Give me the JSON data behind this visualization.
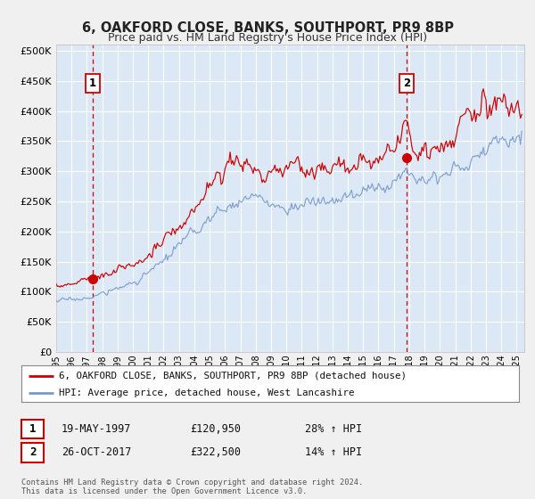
{
  "title": "6, OAKFORD CLOSE, BANKS, SOUTHPORT, PR9 8BP",
  "subtitle": "Price paid vs. HM Land Registry's House Price Index (HPI)",
  "xlim_start": 1995.0,
  "xlim_end": 2025.5,
  "ylim_bottom": 0,
  "ylim_top": 510000,
  "yticks": [
    0,
    50000,
    100000,
    150000,
    200000,
    250000,
    300000,
    350000,
    400000,
    450000,
    500000
  ],
  "ytick_labels": [
    "£0",
    "£50K",
    "£100K",
    "£150K",
    "£200K",
    "£250K",
    "£300K",
    "£350K",
    "£400K",
    "£450K",
    "£500K"
  ],
  "sale1_date": 1997.38,
  "sale1_price": 120950,
  "sale1_label": "1",
  "sale2_date": 2017.82,
  "sale2_price": 322500,
  "sale2_label": "2",
  "legend_line1": "6, OAKFORD CLOSE, BANKS, SOUTHPORT, PR9 8BP (detached house)",
  "legend_line2": "HPI: Average price, detached house, West Lancashire",
  "table_row1": [
    "1",
    "19-MAY-1997",
    "£120,950",
    "28% ↑ HPI"
  ],
  "table_row2": [
    "2",
    "26-OCT-2017",
    "£322,500",
    "14% ↑ HPI"
  ],
  "footer_line1": "Contains HM Land Registry data © Crown copyright and database right 2024.",
  "footer_line2": "This data is licensed under the Open Government Licence v3.0.",
  "red_line_color": "#cc0000",
  "blue_line_color": "#7799cc",
  "plot_bg_color": "#dce8f5",
  "fig_bg_color": "#f0f0f0",
  "grid_color": "#ffffff",
  "vline_color": "#cc0000",
  "hpi_waypoints_x": [
    1995.0,
    1997.0,
    1999.0,
    2001.0,
    2003.0,
    2005.0,
    2007.5,
    2008.5,
    2009.5,
    2011.0,
    2013.0,
    2015.0,
    2017.0,
    2018.5,
    2020.0,
    2022.0,
    2024.0,
    2025.3
  ],
  "hpi_waypoints_y": [
    85000,
    90000,
    105000,
    130000,
    175000,
    220000,
    255000,
    250000,
    240000,
    245000,
    250000,
    265000,
    285000,
    300000,
    295000,
    315000,
    355000,
    360000
  ],
  "red_waypoints_x": [
    1995.0,
    1996.5,
    1997.5,
    1999.0,
    2001.0,
    2003.0,
    2005.0,
    2007.0,
    2008.0,
    2009.5,
    2011.0,
    2012.5,
    2014.0,
    2015.5,
    2017.0,
    2017.5,
    2018.5,
    2020.0,
    2021.5,
    2023.0,
    2024.5,
    2025.3
  ],
  "red_waypoints_y": [
    112000,
    115000,
    122000,
    135000,
    160000,
    205000,
    270000,
    325000,
    295000,
    295000,
    305000,
    300000,
    310000,
    310000,
    340000,
    360000,
    330000,
    345000,
    380000,
    400000,
    420000,
    415000
  ]
}
